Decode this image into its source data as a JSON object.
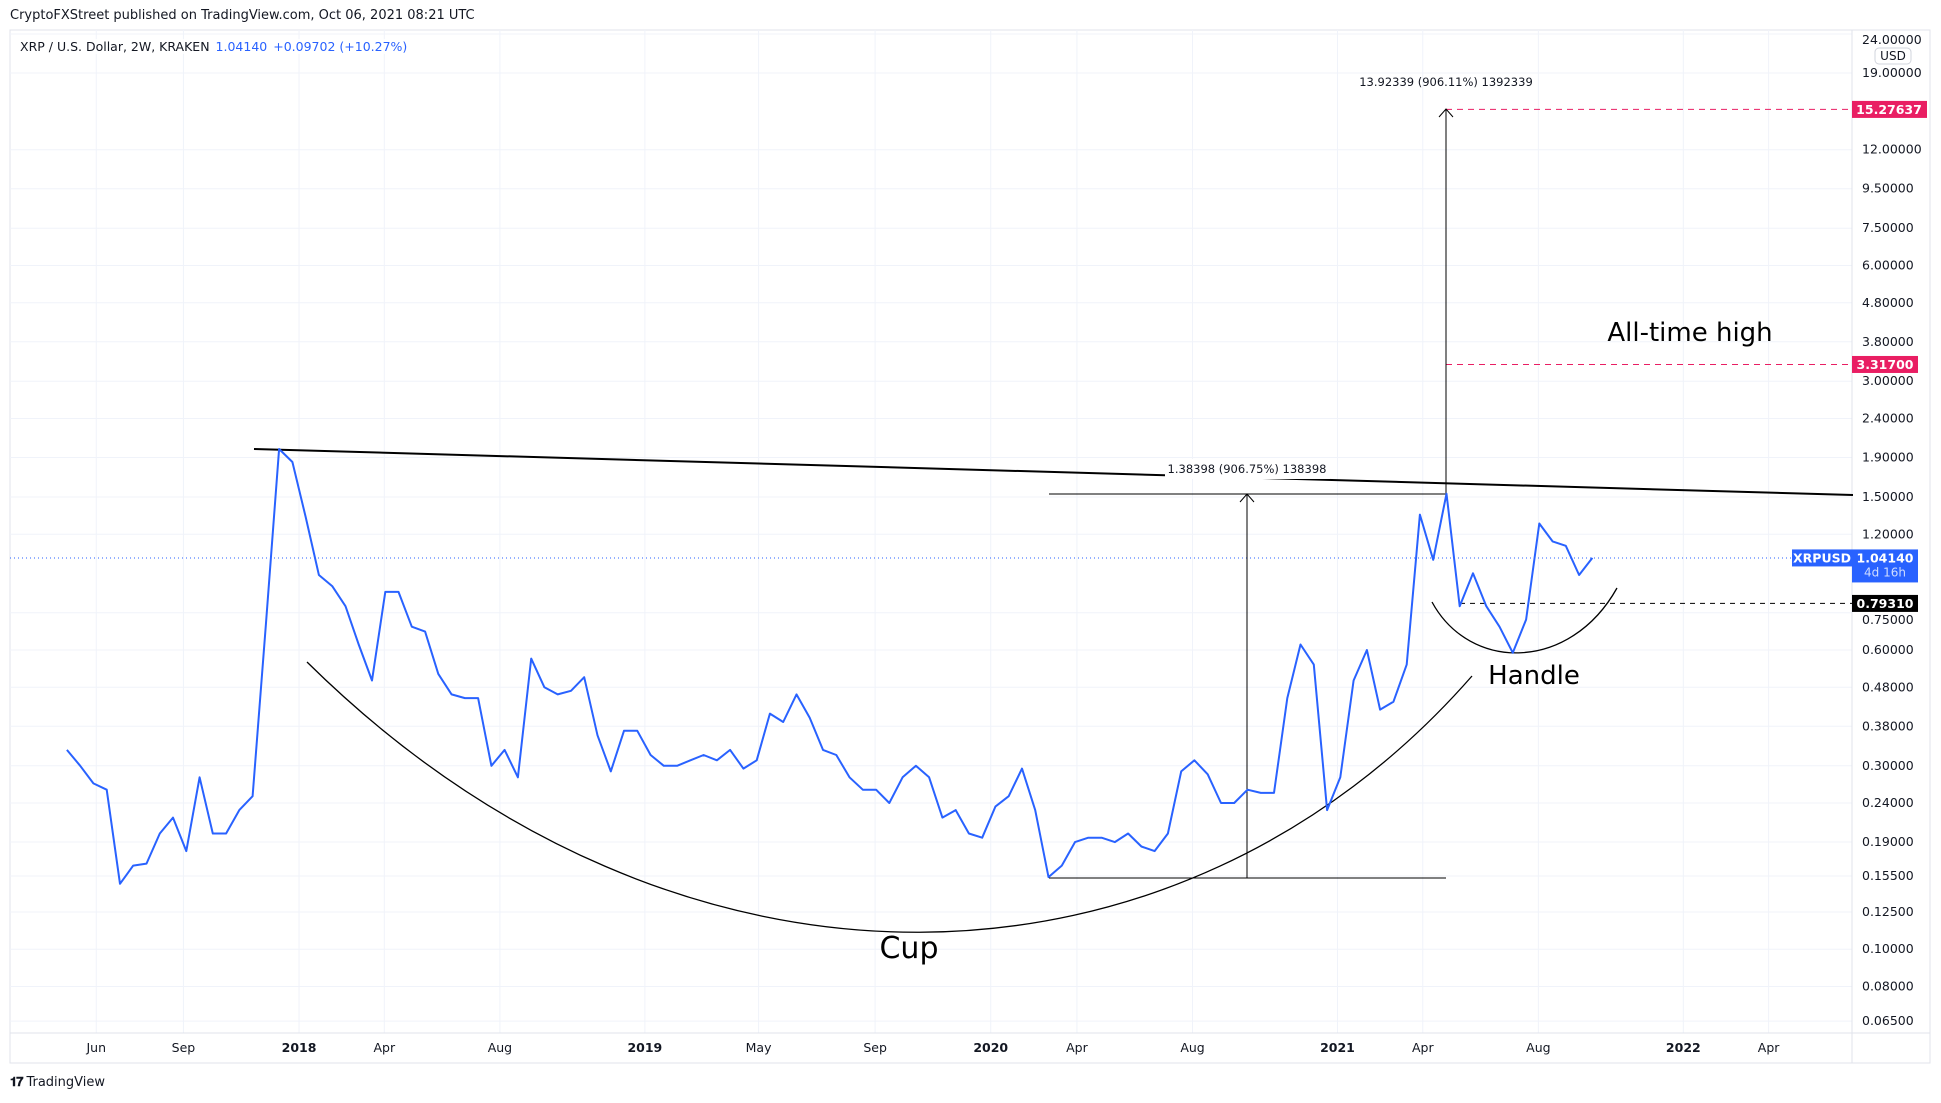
{
  "header": {
    "published": "CryptoFXStreet published on TradingView.com, Oct 06, 2021 08:21 UTC"
  },
  "legend": {
    "symbol": "XRP / U.S. Dollar, 2W, KRAKEN",
    "price": "1.04140",
    "change": "+0.09702 (+10.27%)"
  },
  "footer": {
    "brand": "TradingView",
    "logo": "tradingview-logo"
  },
  "colors": {
    "line": "#2962ff",
    "alert": "#e91e63",
    "grid": "#f0f3fa",
    "annotation": "#000000"
  },
  "chart_data": {
    "type": "line",
    "scale": "log",
    "currency": "USD",
    "grid": true,
    "ylim": [
      0.06,
      25
    ],
    "xlim": [
      "2017-04-20",
      "2022-05-20"
    ],
    "y_ticks": [
      {
        "v": 24,
        "label": "24.00000"
      },
      {
        "v": 19,
        "label": "19.00000"
      },
      {
        "v": 12,
        "label": "12.00000"
      },
      {
        "v": 9.5,
        "label": "9.50000"
      },
      {
        "v": 7.5,
        "label": "7.50000"
      },
      {
        "v": 6,
        "label": "6.00000"
      },
      {
        "v": 4.8,
        "label": "4.80000"
      },
      {
        "v": 3.8,
        "label": "3.80000"
      },
      {
        "v": 3,
        "label": "3.00000"
      },
      {
        "v": 2.4,
        "label": "2.40000"
      },
      {
        "v": 1.9,
        "label": "1.90000"
      },
      {
        "v": 1.5,
        "label": "1.50000"
      },
      {
        "v": 1.2,
        "label": "1.20000"
      },
      {
        "v": 0.75,
        "label": "0.75000"
      },
      {
        "v": 0.6,
        "label": "0.60000"
      },
      {
        "v": 0.48,
        "label": "0.48000"
      },
      {
        "v": 0.38,
        "label": "0.38000"
      },
      {
        "v": 0.3,
        "label": "0.30000"
      },
      {
        "v": 0.24,
        "label": "0.24000"
      },
      {
        "v": 0.19,
        "label": "0.19000"
      },
      {
        "v": 0.155,
        "label": "0.15500"
      },
      {
        "v": 0.125,
        "label": "0.12500"
      },
      {
        "v": 0.1,
        "label": "0.10000"
      },
      {
        "v": 0.08,
        "label": "0.08000"
      },
      {
        "v": 0.065,
        "label": "0.06500"
      }
    ],
    "x_ticks": [
      {
        "d": "2017-06-01",
        "label": "Jun",
        "bold": false
      },
      {
        "d": "2017-09-01",
        "label": "Sep",
        "bold": false
      },
      {
        "d": "2018-01-01",
        "label": "2018",
        "bold": true
      },
      {
        "d": "2018-04-01",
        "label": "Apr",
        "bold": false
      },
      {
        "d": "2018-08-01",
        "label": "Aug",
        "bold": false
      },
      {
        "d": "2019-01-01",
        "label": "2019",
        "bold": true
      },
      {
        "d": "2019-05-01",
        "label": "May",
        "bold": false
      },
      {
        "d": "2019-09-01",
        "label": "Sep",
        "bold": false
      },
      {
        "d": "2020-01-01",
        "label": "2020",
        "bold": true
      },
      {
        "d": "2020-04-01",
        "label": "Apr",
        "bold": false
      },
      {
        "d": "2020-08-01",
        "label": "Aug",
        "bold": false
      },
      {
        "d": "2021-01-01",
        "label": "2021",
        "bold": true
      },
      {
        "d": "2021-04-01",
        "label": "Apr",
        "bold": false
      },
      {
        "d": "2021-08-01",
        "label": "Aug",
        "bold": false
      },
      {
        "d": "2022-01-01",
        "label": "2022",
        "bold": true
      },
      {
        "d": "2022-04-01",
        "label": "Apr",
        "bold": false
      }
    ],
    "series": [
      {
        "x": [
          "2017-05-01",
          "2017-05-15",
          "2017-05-29",
          "2017-06-12",
          "2017-06-26",
          "2017-07-10",
          "2017-07-24",
          "2017-08-07",
          "2017-08-21",
          "2017-09-04",
          "2017-09-18",
          "2017-10-02",
          "2017-10-16",
          "2017-10-30",
          "2017-11-13",
          "2017-11-27",
          "2017-12-11",
          "2017-12-25",
          "2018-01-08",
          "2018-01-22",
          "2018-02-05",
          "2018-02-19",
          "2018-03-05",
          "2018-03-19",
          "2018-04-02",
          "2018-04-16",
          "2018-04-30",
          "2018-05-14",
          "2018-05-28",
          "2018-06-11",
          "2018-06-25",
          "2018-07-09",
          "2018-07-23",
          "2018-08-06",
          "2018-08-20",
          "2018-09-03",
          "2018-09-17",
          "2018-10-01",
          "2018-10-15",
          "2018-10-29",
          "2018-11-12",
          "2018-11-26",
          "2018-12-10",
          "2018-12-24",
          "2019-01-07",
          "2019-01-21",
          "2019-02-04",
          "2019-02-18",
          "2019-03-04",
          "2019-03-18",
          "2019-04-01",
          "2019-04-15",
          "2019-04-29",
          "2019-05-13",
          "2019-05-27",
          "2019-06-10",
          "2019-06-24",
          "2019-07-08",
          "2019-07-22",
          "2019-08-05",
          "2019-08-19",
          "2019-09-02",
          "2019-09-16",
          "2019-09-30",
          "2019-10-14",
          "2019-10-28",
          "2019-11-11",
          "2019-11-25",
          "2019-12-09",
          "2019-12-23",
          "2020-01-06",
          "2020-01-20",
          "2020-02-03",
          "2020-02-17",
          "2020-03-02",
          "2020-03-16",
          "2020-03-30",
          "2020-04-13",
          "2020-04-27",
          "2020-05-11",
          "2020-05-25",
          "2020-06-08",
          "2020-06-22",
          "2020-07-06",
          "2020-07-20",
          "2020-08-03",
          "2020-08-17",
          "2020-08-31",
          "2020-09-14",
          "2020-09-28",
          "2020-10-12",
          "2020-10-26",
          "2020-11-09",
          "2020-11-23",
          "2020-12-07",
          "2020-12-21",
          "2021-01-04",
          "2021-01-18",
          "2021-02-01",
          "2021-02-15",
          "2021-03-01",
          "2021-03-15",
          "2021-03-29",
          "2021-04-12",
          "2021-04-26",
          "2021-05-10",
          "2021-05-24",
          "2021-06-07",
          "2021-06-21",
          "2021-07-05",
          "2021-07-19",
          "2021-08-02",
          "2021-08-16",
          "2021-08-30",
          "2021-09-13",
          "2021-09-27"
        ],
        "y": [
          0.33,
          0.3,
          0.27,
          0.26,
          0.148,
          0.165,
          0.167,
          0.2,
          0.22,
          0.18,
          0.28,
          0.2,
          0.2,
          0.23,
          0.25,
          0.7,
          2.0,
          1.85,
          1.33,
          0.94,
          0.88,
          0.78,
          0.62,
          0.5,
          0.85,
          0.85,
          0.69,
          0.67,
          0.52,
          0.46,
          0.45,
          0.45,
          0.3,
          0.33,
          0.28,
          0.57,
          0.48,
          0.46,
          0.47,
          0.51,
          0.36,
          0.29,
          0.37,
          0.37,
          0.32,
          0.3,
          0.3,
          0.31,
          0.32,
          0.31,
          0.33,
          0.295,
          0.31,
          0.41,
          0.39,
          0.46,
          0.4,
          0.33,
          0.32,
          0.28,
          0.26,
          0.26,
          0.24,
          0.28,
          0.3,
          0.28,
          0.22,
          0.23,
          0.2,
          0.195,
          0.235,
          0.25,
          0.295,
          0.23,
          0.154,
          0.165,
          0.19,
          0.195,
          0.195,
          0.19,
          0.2,
          0.185,
          0.18,
          0.2,
          0.29,
          0.31,
          0.285,
          0.24,
          0.24,
          0.26,
          0.255,
          0.255,
          0.45,
          0.62,
          0.55,
          0.23,
          0.28,
          0.5,
          0.6,
          0.42,
          0.44,
          0.55,
          1.35,
          1.03,
          1.53,
          0.78,
          0.95,
          0.78,
          0.69,
          0.59,
          0.72,
          1.28,
          1.15,
          1.12,
          0.94,
          1.0414
        ]
      }
    ],
    "price_labels": {
      "target": "15.27637",
      "ath": "3.31700",
      "support": "0.79310",
      "current_symbol": "XRPUSD",
      "current_price": "1.04140",
      "countdown": "4d 16h"
    },
    "annotations": {
      "cup": "Cup",
      "handle": "Handle",
      "ath": "All-time high",
      "measure_cup": "1.38398 (906.75%) 138398",
      "measure_target": "13.92339 (906.11%) 1392339"
    }
  }
}
